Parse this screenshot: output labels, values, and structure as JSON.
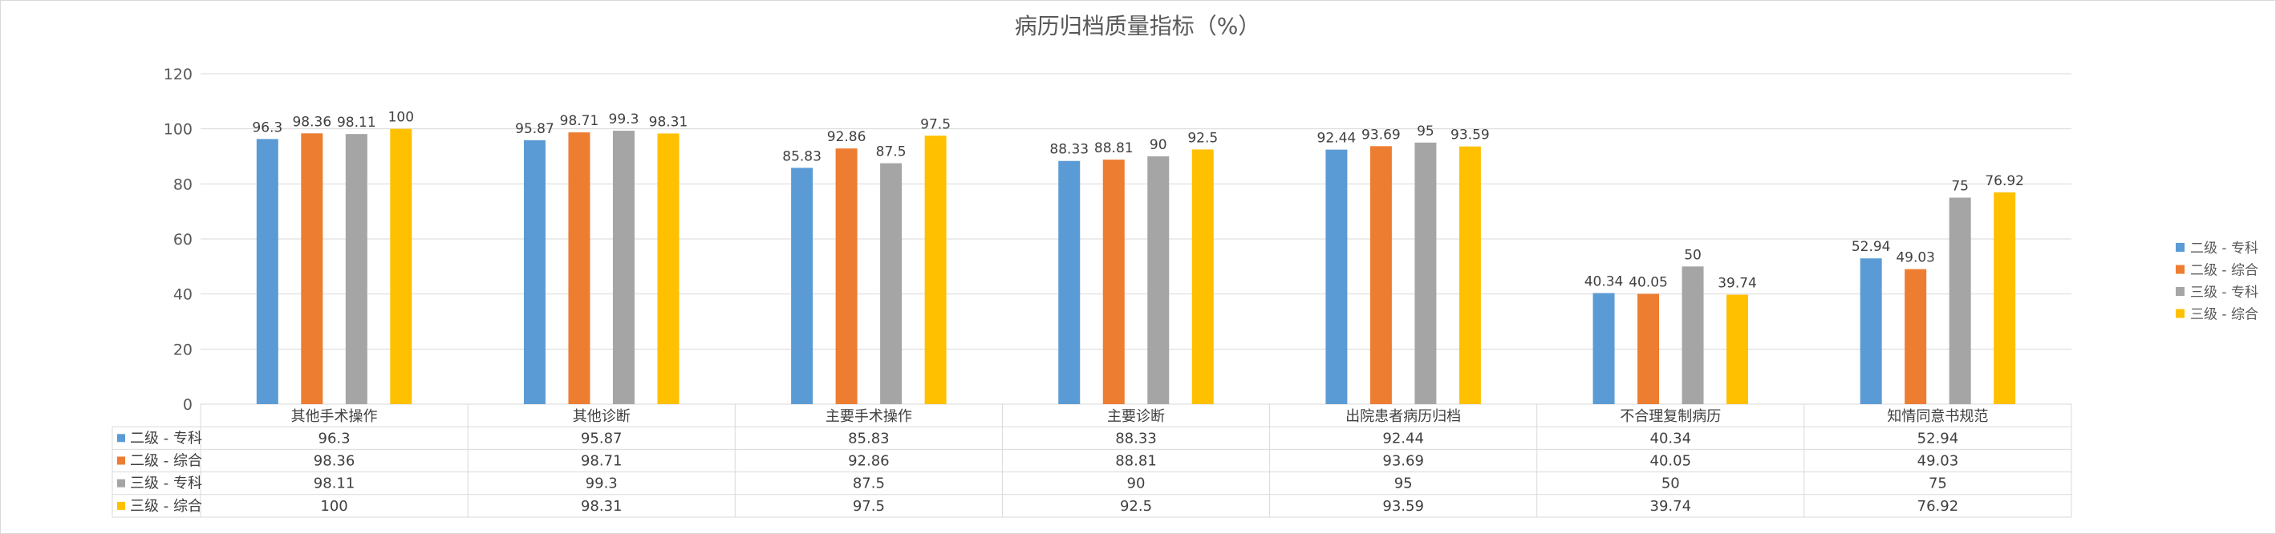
{
  "chart_data": {
    "type": "bar",
    "title": "病历归档质量指标（%）",
    "categories": [
      "其他手术操作",
      "其他诊断",
      "主要手术操作",
      "主要诊断",
      "出院患者病历归档",
      "不合理复制病历",
      "知情同意书规范"
    ],
    "series": [
      {
        "name": "二级 - 专科",
        "color": "#5b9bd5",
        "values": [
          96.3,
          95.87,
          85.83,
          88.33,
          92.44,
          40.34,
          52.94
        ]
      },
      {
        "name": "二级 - 综合",
        "color": "#ed7d31",
        "values": [
          98.36,
          98.71,
          92.86,
          88.81,
          93.69,
          40.05,
          49.03
        ]
      },
      {
        "name": "三级 - 专科",
        "color": "#a5a5a5",
        "values": [
          98.11,
          99.3,
          87.5,
          90,
          95,
          50,
          75
        ]
      },
      {
        "name": "三级 - 综合",
        "color": "#ffc000",
        "values": [
          100,
          98.31,
          97.5,
          92.5,
          93.59,
          39.74,
          76.92
        ]
      }
    ],
    "ylim": [
      0,
      120
    ],
    "yticks": [
      0,
      20,
      40,
      60,
      80,
      100,
      120
    ],
    "grid": true,
    "legend": "right",
    "data_table": true
  }
}
